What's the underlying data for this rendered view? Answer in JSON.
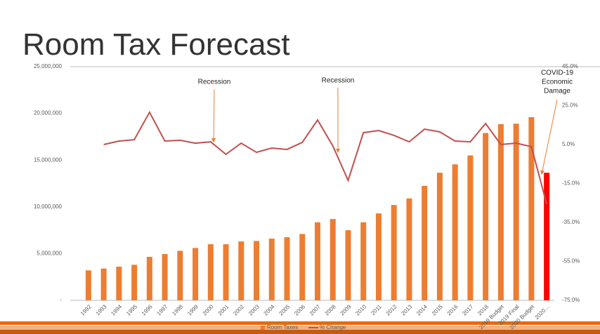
{
  "chart_data": {
    "type": "bar_line",
    "title": "Room Tax Forecast",
    "categories": [
      "1992",
      "1993",
      "1994",
      "1995",
      "1996",
      "1997",
      "1998",
      "1999",
      "2000",
      "2001",
      "2002",
      "2003",
      "2004",
      "2005",
      "2006",
      "2007",
      "2008",
      "2009",
      "2010",
      "2011",
      "2012",
      "2013",
      "2014",
      "2015",
      "2016",
      "2017",
      "2018",
      "2019 Budget",
      "2019 Final",
      "2020 Budget",
      "2020…"
    ],
    "series": [
      {
        "name": "Room Taxes",
        "color": "#ED7D31",
        "colors": [
          "#ED7D31",
          "#ED7D31",
          "#ED7D31",
          "#ED7D31",
          "#ED7D31",
          "#ED7D31",
          "#ED7D31",
          "#ED7D31",
          "#ED7D31",
          "#ED7D31",
          "#ED7D31",
          "#ED7D31",
          "#ED7D31",
          "#ED7D31",
          "#ED7D31",
          "#ED7D31",
          "#ED7D31",
          "#ED7D31",
          "#ED7D31",
          "#ED7D31",
          "#ED7D31",
          "#ED7D31",
          "#ED7D31",
          "#ED7D31",
          "#ED7D31",
          "#ED7D31",
          "#ED7D31",
          "#ED7D31",
          "#ED7D31",
          "#ED7D31",
          "#FF0000"
        ],
        "values": [
          3200000,
          3400000,
          3600000,
          3800000,
          4650000,
          4950000,
          5300000,
          5600000,
          6000000,
          6000000,
          6300000,
          6350000,
          6600000,
          6750000,
          7100000,
          8350000,
          8700000,
          7500000,
          8350000,
          9300000,
          10200000,
          10900000,
          12250000,
          13650000,
          14550000,
          15500000,
          17900000,
          18850000,
          18900000,
          19600000,
          13650000
        ]
      },
      {
        "name": "% Change",
        "color": "#C0504D",
        "axis": "y2",
        "values": [
          null,
          5.0,
          6.8,
          7.5,
          21.6,
          6.8,
          7.2,
          5.7,
          6.4,
          0,
          5.7,
          1.0,
          3.2,
          2.5,
          6.1,
          17.6,
          4.3,
          -13.4,
          11.1,
          12.2,
          9.7,
          6.4,
          12.9,
          11.5,
          6.8,
          6.4,
          15.8,
          5.0,
          5.7,
          3.9,
          -25.6
        ]
      }
    ],
    "ylim": [
      0,
      25000000
    ],
    "yticks": [
      {
        "value": 0,
        "label": "-"
      },
      {
        "value": 5000000,
        "label": "5,000,000"
      },
      {
        "value": 10000000,
        "label": "10,000,000"
      },
      {
        "value": 15000000,
        "label": "15,000,000"
      },
      {
        "value": 20000000,
        "label": "20,000,000"
      },
      {
        "value": 25000000,
        "label": "25,000,000"
      }
    ],
    "y2lim": [
      -75,
      45
    ],
    "y2ticks": [
      {
        "value": -75,
        "label": "-75.0%"
      },
      {
        "value": -55,
        "label": "-55.0%"
      },
      {
        "value": -35,
        "label": "-35.0%"
      },
      {
        "value": -15,
        "label": "-15.0%"
      },
      {
        "value": 5,
        "label": "5.0%"
      },
      {
        "value": 25,
        "label": "25.0%"
      },
      {
        "value": 45,
        "label": "45.0%"
      }
    ],
    "annotations": [
      [
        "Recession"
      ],
      [
        "Recession"
      ],
      [
        "COVID-19",
        "Economic",
        "Damage"
      ]
    ],
    "legend": "bottom"
  }
}
